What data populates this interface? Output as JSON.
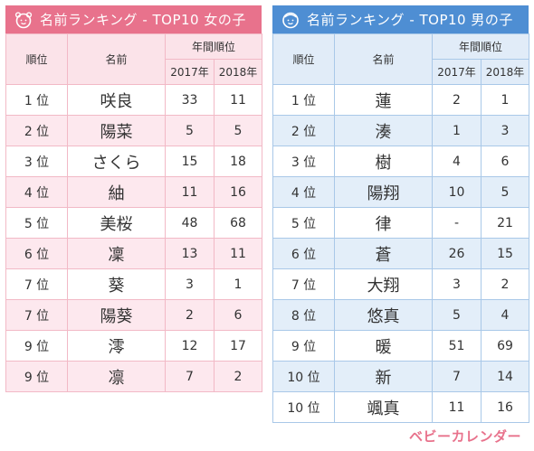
{
  "girls": {
    "title": "名前ランキング - TOP10 女の子",
    "headers": {
      "rank": "順位",
      "name": "名前",
      "period": "年間順位",
      "year1": "2017年",
      "year2": "2018年"
    },
    "colors": {
      "header_bg": "#e8728c",
      "stripe": "#fde8ee"
    },
    "rows": [
      {
        "rank": "1 位",
        "name": "咲良",
        "y2017": "33",
        "y2018": "11"
      },
      {
        "rank": "2 位",
        "name": "陽菜",
        "y2017": "5",
        "y2018": "5"
      },
      {
        "rank": "3 位",
        "name": "さくら",
        "y2017": "15",
        "y2018": "18"
      },
      {
        "rank": "4 位",
        "name": "紬",
        "y2017": "11",
        "y2018": "16"
      },
      {
        "rank": "5 位",
        "name": "美桜",
        "y2017": "48",
        "y2018": "68"
      },
      {
        "rank": "6 位",
        "name": "凜",
        "y2017": "13",
        "y2018": "11"
      },
      {
        "rank": "7 位",
        "name": "葵",
        "y2017": "3",
        "y2018": "1"
      },
      {
        "rank": "7 位",
        "name": "陽葵",
        "y2017": "2",
        "y2018": "6"
      },
      {
        "rank": "9 位",
        "name": "澪",
        "y2017": "12",
        "y2018": "17"
      },
      {
        "rank": "9 位",
        "name": "凛",
        "y2017": "7",
        "y2018": "2"
      }
    ]
  },
  "boys": {
    "title": "名前ランキング - TOP10 男の子",
    "headers": {
      "rank": "順位",
      "name": "名前",
      "period": "年間順位",
      "year1": "2017年",
      "year2": "2018年"
    },
    "colors": {
      "header_bg": "#4e8ed3",
      "stripe": "#e3eef9"
    },
    "rows": [
      {
        "rank": "1 位",
        "name": "蓮",
        "y2017": "2",
        "y2018": "1"
      },
      {
        "rank": "2 位",
        "name": "湊",
        "y2017": "1",
        "y2018": "3"
      },
      {
        "rank": "3 位",
        "name": "樹",
        "y2017": "4",
        "y2018": "6"
      },
      {
        "rank": "4 位",
        "name": "陽翔",
        "y2017": "10",
        "y2018": "5"
      },
      {
        "rank": "5 位",
        "name": "律",
        "y2017": "-",
        "y2018": "21"
      },
      {
        "rank": "6 位",
        "name": "蒼",
        "y2017": "26",
        "y2018": "15"
      },
      {
        "rank": "7 位",
        "name": "大翔",
        "y2017": "3",
        "y2018": "2"
      },
      {
        "rank": "8 位",
        "name": "悠真",
        "y2017": "5",
        "y2018": "4"
      },
      {
        "rank": "9 位",
        "name": "暖",
        "y2017": "51",
        "y2018": "69"
      },
      {
        "rank": "10 位",
        "name": "新",
        "y2017": "7",
        "y2018": "14"
      },
      {
        "rank": "10 位",
        "name": "颯真",
        "y2017": "11",
        "y2018": "16"
      }
    ]
  },
  "logo": {
    "text": "ベビーカレンダー"
  },
  "icons": {
    "girl": "girl-face-icon",
    "boy": "boy-face-icon"
  }
}
